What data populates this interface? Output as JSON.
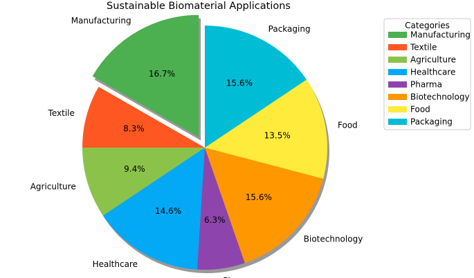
{
  "chart_data": {
    "type": "pie",
    "title": "Sustainable Biomaterial Applications",
    "legend_title": "Categories",
    "legend_position": "right",
    "start_angle_deg": 90,
    "direction": "counterclockwise",
    "slices": [
      {
        "label": "Manufacturing",
        "value": 16.7,
        "pct_label": "16.7%",
        "color": "#4caf50",
        "exploded": true
      },
      {
        "label": "Textile",
        "value": 8.3,
        "pct_label": "8.3%",
        "color": "#ff5722",
        "exploded": false
      },
      {
        "label": "Agriculture",
        "value": 9.4,
        "pct_label": "9.4%",
        "color": "#8bc34a",
        "exploded": false
      },
      {
        "label": "Healthcare",
        "value": 14.6,
        "pct_label": "14.6%",
        "color": "#03a9f4",
        "exploded": false
      },
      {
        "label": "Pharma",
        "value": 6.3,
        "pct_label": "6.3%",
        "color": "#8e44ad",
        "exploded": false
      },
      {
        "label": "Biotechnology",
        "value": 15.6,
        "pct_label": "15.6%",
        "color": "#ff9800",
        "exploded": false
      },
      {
        "label": "Food",
        "value": 13.5,
        "pct_label": "13.5%",
        "color": "#ffeb3b",
        "exploded": false
      },
      {
        "label": "Packaging",
        "value": 15.6,
        "pct_label": "15.6%",
        "color": "#00bcd4",
        "exploded": false
      }
    ]
  }
}
